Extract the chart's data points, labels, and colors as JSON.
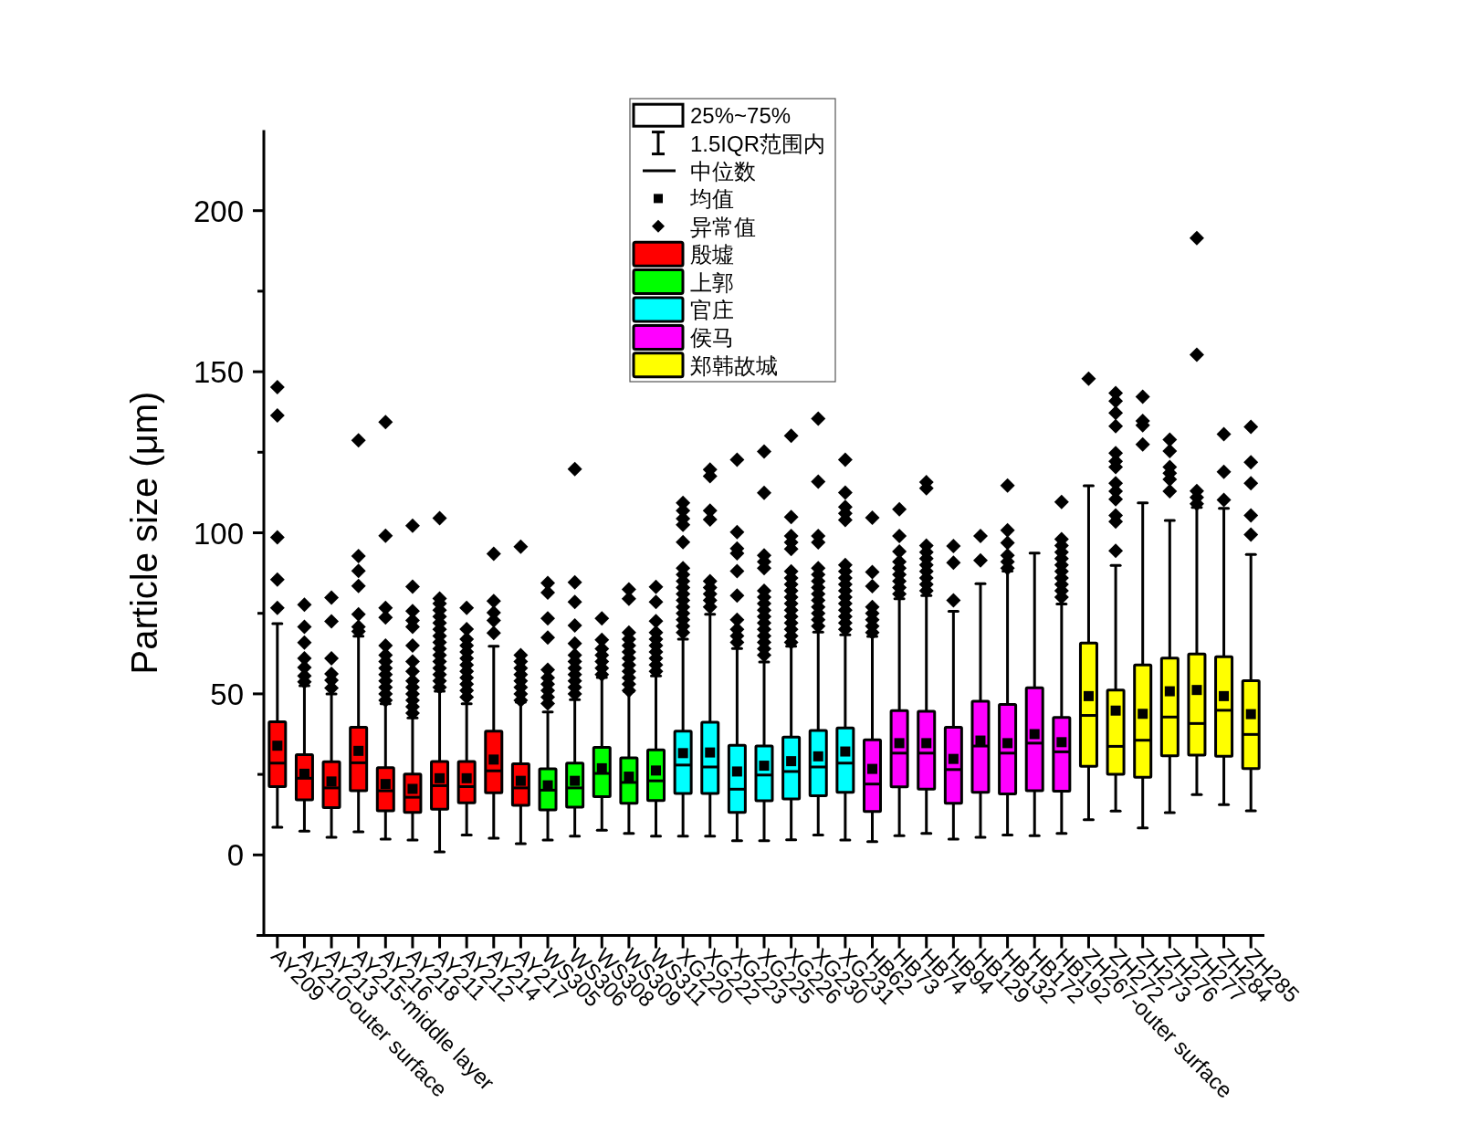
{
  "chart_data": {
    "type": "box",
    "ylabel": "Particle size (μm)",
    "categories": [
      "AY209",
      "AY210-outer surface",
      "AY213",
      "AY215-middle layer",
      "AY216",
      "AY218",
      "AY211",
      "AY212",
      "AY214",
      "AY217",
      "WS305",
      "WS306",
      "WS308",
      "WS309",
      "WS311",
      "XG220",
      "XG222",
      "XG223",
      "XG225",
      "XG226",
      "XG230",
      "XG231",
      "HB62",
      "HB73",
      "HB74",
      "HB94",
      "HB129",
      "HB132",
      "HB172",
      "HB192",
      "ZH267-outer surface",
      "ZH272",
      "ZH273",
      "ZH276",
      "ZH277",
      "ZH284",
      "ZH285"
    ],
    "ylim": [
      -25,
      225
    ],
    "yticks": [
      0,
      {
        "value": 25,
        "label": null
      },
      50,
      {
        "value": 75,
        "label": null
      },
      100,
      {
        "value": 125,
        "label": null
      },
      150,
      {
        "value": 175,
        "label": null
      },
      200
    ],
    "legend": "top",
    "marker": "diamond",
    "annotations": [
      "25%~75%",
      "1.5IQR范围内",
      "中位数",
      "均值",
      "异常值"
    ],
    "series": [
      {
        "name": "殷墟",
        "color": "#ff0000",
        "boxes": [
          {
            "low": 8.6,
            "q1": 21.2,
            "median": 28.5,
            "q3": 41.3,
            "high": 71.8,
            "mean": 33.9,
            "outliers": [
              76.7,
              85.5,
              98.6,
              136.4,
              145.2
            ]
          },
          {
            "low": 7.4,
            "q1": 17.1,
            "median": 23.8,
            "q3": 31.1,
            "high": 52.5,
            "mean": 25.2,
            "outliers": [
              53.7,
              55.6,
              58.2,
              61,
              65.9,
              70.8,
              77.7
            ]
          },
          {
            "low": 5.5,
            "q1": 14.7,
            "median": 20.8,
            "q3": 28.9,
            "high": 50,
            "mean": 22.8,
            "outliers": [
              51.8,
              54.2,
              56.2,
              61,
              72.5,
              79.9
            ]
          },
          {
            "low": 7.2,
            "q1": 19.9,
            "median": 28.6,
            "q3": 39.6,
            "high": 67.9,
            "mean": 32.3,
            "outliers": [
              69.4,
              70.8,
              74.7,
              83.5,
              88.2,
              92.8,
              128.7
            ]
          },
          {
            "low": 4.9,
            "q1": 13.7,
            "median": 19.9,
            "q3": 27.1,
            "high": 46.9,
            "mean": 22,
            "outliers": [
              48,
              50,
              52,
              54,
              56,
              58,
              60,
              62,
              65,
              73.7,
              76.7,
              99.1,
              134.4
            ]
          },
          {
            "low": 4.6,
            "q1": 13.2,
            "median": 17.9,
            "q3": 25.1,
            "high": 42.5,
            "mean": 20.5,
            "outliers": [
              44,
              46,
              48,
              50,
              52,
              54,
              57,
              60,
              65,
              70.8,
              72.8,
              75.7,
              83.3,
              102.2
            ]
          },
          {
            "low": 0.9,
            "q1": 14.2,
            "median": 21.5,
            "q3": 29,
            "high": 50.8,
            "mean": 23.8,
            "outliers": [
              52,
              54,
              56,
              58,
              60,
              62,
              64,
              66,
              68,
              70,
              72,
              74,
              76,
              78,
              79.6,
              104.5
            ]
          },
          {
            "low": 6.2,
            "q1": 16.2,
            "median": 21.2,
            "q3": 29,
            "high": 46.9,
            "mean": 23.8,
            "outliers": [
              49,
              51,
              53,
              55,
              57,
              59,
              61,
              63,
              65,
              67,
              70.1,
              76.7
            ]
          },
          {
            "low": 5.2,
            "q1": 19.3,
            "median": 26.1,
            "q3": 38.4,
            "high": 64.8,
            "mean": 29.6,
            "outliers": [
              68.9,
              72.8,
              75.2,
              78.8,
              93.5
            ]
          },
          {
            "low": 3.5,
            "q1": 15.4,
            "median": 20.8,
            "q3": 28.3,
            "high": 47.4,
            "mean": 23,
            "outliers": [
              48,
              50,
              52,
              54,
              56,
              58,
              60,
              62,
              95.7
            ]
          },
          null,
          null,
          null,
          null,
          null,
          null,
          null,
          null,
          null,
          null,
          null,
          null,
          null,
          null,
          null,
          null,
          null,
          null,
          null,
          null,
          null,
          null,
          null,
          null,
          null,
          null,
          null
        ]
      },
      {
        "name": "上郭",
        "color": "#00ff00",
        "boxes": [
          null,
          null,
          null,
          null,
          null,
          null,
          null,
          null,
          null,
          null,
          {
            "low": 4.6,
            "q1": 14,
            "median": 20.1,
            "q3": 26.7,
            "high": 44.4,
            "mean": 21.6,
            "outliers": [
              47,
              49,
              51,
              53,
              55,
              57.5,
              67.5,
              73.4,
              81.4,
              84.4
            ]
          },
          {
            "low": 5.8,
            "q1": 14.8,
            "median": 20.8,
            "q3": 28.5,
            "high": 48.2,
            "mean": 23,
            "outliers": [
              50,
              52,
              54,
              56,
              58,
              60,
              62,
              65.6,
              71.2,
              78.5,
              84.6,
              119.8
            ]
          },
          {
            "low": 7.7,
            "q1": 18.1,
            "median": 25.3,
            "q3": 33.4,
            "high": 55.1,
            "mean": 26.9,
            "outliers": [
              56,
              58,
              60,
              62,
              64,
              66.8,
              73.4
            ]
          },
          {
            "low": 6.7,
            "q1": 16,
            "median": 22.5,
            "q3": 30.1,
            "high": 50.7,
            "mean": 24.3,
            "outliers": [
              51,
              53,
              55,
              57,
              59,
              61,
              63,
              65,
              67,
              69,
              79.5,
              82.4
            ]
          },
          {
            "low": 5.8,
            "q1": 16.9,
            "median": 23,
            "q3": 32.6,
            "high": 55.6,
            "mean": 26.2,
            "outliers": [
              57,
              59,
              61,
              63,
              65,
              67,
              69,
              72.6,
              78.5,
              83.2
            ]
          },
          null,
          null,
          null,
          null,
          null,
          null,
          null,
          null,
          null,
          null,
          null,
          null,
          null,
          null,
          null,
          null,
          null,
          null,
          null,
          null,
          null,
          null
        ]
      },
      {
        "name": "官庄",
        "color": "#00ffff",
        "boxes": [
          null,
          null,
          null,
          null,
          null,
          null,
          null,
          null,
          null,
          null,
          null,
          null,
          null,
          null,
          null,
          {
            "low": 5.8,
            "q1": 19.1,
            "median": 27.9,
            "q3": 38.4,
            "high": 67,
            "mean": 31.6,
            "outliers": [
              69,
              71,
              73,
              75,
              77,
              79,
              81,
              83,
              85,
              87,
              89,
              97.1,
              102.5,
              104.4,
              106.9,
              109.3
            ]
          },
          {
            "low": 5.8,
            "q1": 19.1,
            "median": 27.3,
            "q3": 41.2,
            "high": 74.7,
            "mean": 31.8,
            "outliers": [
              77,
              79,
              81,
              83,
              85,
              104.1,
              106.9,
              117.6,
              119.6
            ]
          },
          {
            "low": 4.4,
            "q1": 13.2,
            "median": 20.4,
            "q3": 34,
            "high": 64.1,
            "mean": 25.9,
            "outliers": [
              66,
              68,
              70,
              73,
              80.5,
              88.1,
              93.6,
              95.1,
              100.2,
              122.7
            ]
          },
          {
            "low": 4.4,
            "q1": 16.8,
            "median": 24.8,
            "q3": 33.8,
            "high": 59.9,
            "mean": 27.7,
            "outliers": [
              62,
              64,
              66,
              68,
              70,
              72,
              74,
              76,
              78,
              80,
              82,
              89,
              91,
              93,
              112.4,
              125.2
            ]
          },
          {
            "low": 4.7,
            "q1": 17.4,
            "median": 25.9,
            "q3": 36.6,
            "high": 64.8,
            "mean": 29.1,
            "outliers": [
              66,
              68,
              70,
              72,
              74,
              76,
              78,
              80,
              82,
              84,
              86,
              88,
              95,
              97,
              99,
              104.9,
              130.1
            ]
          },
          {
            "low": 6.2,
            "q1": 18.4,
            "median": 27.3,
            "q3": 38.6,
            "high": 69.2,
            "mean": 30.6,
            "outliers": [
              71,
              73,
              75,
              77,
              79,
              81,
              83,
              85,
              87,
              89,
              97,
              99,
              115.9,
              135.4
            ]
          },
          {
            "low": 4.6,
            "q1": 19.4,
            "median": 28.5,
            "q3": 39.4,
            "high": 68.3,
            "mean": 32.1,
            "outliers": [
              70,
              72,
              74,
              76,
              78,
              80,
              82,
              84,
              86,
              88,
              90,
              104,
              106,
              108,
              112.5,
              122.7
            ]
          },
          null,
          null,
          null,
          null,
          null,
          null,
          null,
          null,
          null,
          null,
          null,
          null,
          null,
          null,
          null
        ]
      },
      {
        "name": "侯马",
        "color": "#ff00ff",
        "boxes": [
          null,
          null,
          null,
          null,
          null,
          null,
          null,
          null,
          null,
          null,
          null,
          null,
          null,
          null,
          null,
          null,
          null,
          null,
          null,
          null,
          null,
          null,
          {
            "low": 4.1,
            "q1": 13.5,
            "median": 22,
            "q3": 35.7,
            "high": 67.8,
            "mean": 26.7,
            "outliers": [
              69,
              71,
              73,
              75,
              77,
              83.4,
              87.8,
              104.7
            ]
          },
          {
            "low": 6,
            "q1": 21.1,
            "median": 31.6,
            "q3": 44.8,
            "high": 79.5,
            "mean": 34.7,
            "outliers": [
              81,
              83,
              85,
              87,
              89,
              91,
              94.2,
              99,
              107.3
            ]
          },
          {
            "low": 6.7,
            "q1": 20.4,
            "median": 31.6,
            "q3": 44.6,
            "high": 80.5,
            "mean": 34.7,
            "outliers": [
              82,
              84,
              86,
              88,
              90,
              92,
              94,
              96,
              113.8,
              115.7
            ]
          },
          {
            "low": 4.9,
            "q1": 16,
            "median": 26.5,
            "q3": 39.6,
            "high": 75.6,
            "mean": 29.8,
            "outliers": [
              79,
              90.7,
              95.9
            ]
          },
          {
            "low": 5.5,
            "q1": 19.4,
            "median": 33.8,
            "q3": 47.7,
            "high": 84.2,
            "mean": 35.5,
            "outliers": [
              91.4,
              99
            ]
          },
          {
            "low": 6.2,
            "q1": 18.9,
            "median": 31.6,
            "q3": 46.7,
            "high": 88.1,
            "mean": 34.7,
            "outliers": [
              89,
              91,
              93,
              96.9,
              100.8,
              114.7
            ]
          },
          {
            "low": 6,
            "q1": 19.9,
            "median": 34.7,
            "q3": 51.9,
            "high": 93.7,
            "mean": 37.5
          },
          {
            "low": 6.7,
            "q1": 19.8,
            "median": 32,
            "q3": 42.7,
            "high": 77.9,
            "mean": 35,
            "outliers": [
              80,
              82,
              84,
              86,
              88,
              90,
              92,
              94,
              96,
              98,
              109.6
            ]
          },
          null,
          null,
          null,
          null,
          null,
          null,
          null
        ]
      },
      {
        "name": "郑韩故城",
        "color": "#ffff00",
        "boxes": [
          null,
          null,
          null,
          null,
          null,
          null,
          null,
          null,
          null,
          null,
          null,
          null,
          null,
          null,
          null,
          null,
          null,
          null,
          null,
          null,
          null,
          null,
          null,
          null,
          null,
          null,
          null,
          null,
          null,
          null,
          {
            "low": 10.9,
            "q1": 27.5,
            "median": 43.3,
            "q3": 65.8,
            "high": 114.6,
            "mean": 49.3,
            "outliers": [
              147.8
            ]
          },
          {
            "low": 13.6,
            "q1": 25,
            "median": 33.7,
            "q3": 51.2,
            "high": 89.9,
            "mean": 44.8,
            "outliers": [
              94.4,
              103.5,
              105.4,
              110.4,
              112.9,
              115.4,
              120.4,
              122.2,
              124.7,
              133.1,
              137.2,
              140.9,
              143.4
            ]
          },
          {
            "low": 8.4,
            "q1": 24.1,
            "median": 35.6,
            "q3": 59,
            "high": 109.3,
            "mean": 43.8,
            "outliers": [
              127.4,
              133.4,
              134.7,
              142.2
            ]
          },
          {
            "low": 13.1,
            "q1": 30.8,
            "median": 42.8,
            "q3": 61.1,
            "high": 103.8,
            "mean": 50.8,
            "outliers": [
              112.9,
              116.6,
              118.5,
              120.4,
              125.4,
              128.9
            ]
          },
          {
            "low": 18.7,
            "q1": 31,
            "median": 40.8,
            "q3": 62.4,
            "high": 107.9,
            "mean": 51.2,
            "outliers": [
              109,
              111,
              113,
              155.3,
              191.5
            ]
          },
          {
            "low": 15.6,
            "q1": 30.6,
            "median": 44.9,
            "q3": 61.5,
            "high": 107.6,
            "mean": 49.3,
            "outliers": [
              110.2,
              118.9,
              130.6
            ]
          },
          {
            "low": 13.7,
            "q1": 26.8,
            "median": 37.4,
            "q3": 54.1,
            "high": 93.3,
            "mean": 43.7,
            "outliers": [
              99.4,
              105.4,
              115.4,
              121.9,
              132.9
            ]
          }
        ]
      }
    ]
  }
}
